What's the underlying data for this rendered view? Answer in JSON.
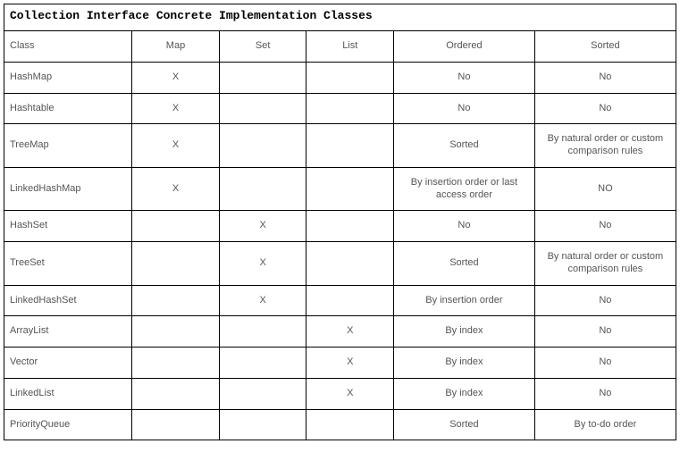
{
  "table": {
    "type": "table",
    "title": "Collection Interface Concrete Implementation Classes",
    "title_font": "Courier New, monospace",
    "title_fontsize": 13,
    "title_weight": "bold",
    "title_color": "#000000",
    "cell_font": "Arial, Helvetica, sans-serif",
    "cell_fontsize": 11,
    "cell_color": "#555555",
    "border_color": "#000000",
    "background_color": "#ffffff",
    "column_widths_pct": [
      19,
      13,
      13,
      13,
      21,
      21
    ],
    "column_align": [
      "left",
      "center",
      "center",
      "center",
      "center",
      "center"
    ],
    "columns": [
      "Class",
      "Map",
      "Set",
      "List",
      "Ordered",
      "Sorted"
    ],
    "rows": [
      [
        "HashMap",
        "X",
        "",
        "",
        "No",
        "No"
      ],
      [
        "Hashtable",
        "X",
        "",
        "",
        "No",
        "No"
      ],
      [
        "TreeMap",
        "X",
        "",
        "",
        "Sorted",
        "By natural order or custom comparison rules"
      ],
      [
        "LinkedHashMap",
        "X",
        "",
        "",
        "By insertion order or last access order",
        "NO"
      ],
      [
        "HashSet",
        "",
        "X",
        "",
        "No",
        "No"
      ],
      [
        "TreeSet",
        "",
        "X",
        "",
        "Sorted",
        "By natural order or custom comparison rules"
      ],
      [
        "LinkedHashSet",
        "",
        "X",
        "",
        "By insertion order",
        "No"
      ],
      [
        "ArrayList",
        "",
        "",
        "X",
        "By index",
        "No"
      ],
      [
        "Vector",
        "",
        "",
        "X",
        "By index",
        "No"
      ],
      [
        "LinkedList",
        "",
        "",
        "X",
        "By index",
        "No"
      ],
      [
        "PriorityQueue",
        "",
        "",
        "",
        "Sorted",
        "By to-do order"
      ]
    ]
  }
}
